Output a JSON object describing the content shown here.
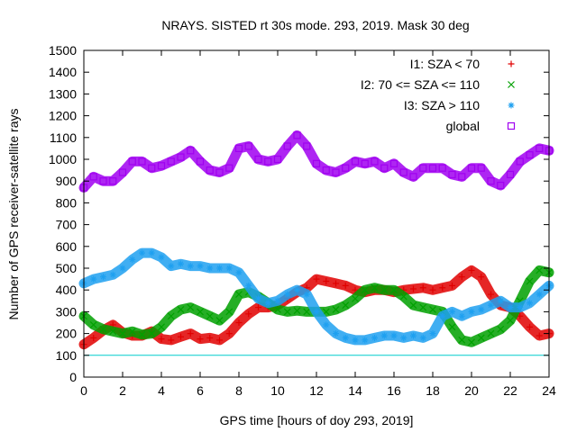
{
  "chart_data": {
    "type": "scatter",
    "title": "NRAYS. SISTED rt 30s mode. 293, 2019. Mask 30 deg",
    "xlabel": "GPS time [hours of doy 293, 2019]",
    "ylabel": "Number of GPS receiver-satellite rays",
    "xlim": [
      0,
      24
    ],
    "ylim": [
      0,
      1500
    ],
    "xticks": [
      0,
      2,
      4,
      6,
      8,
      10,
      12,
      14,
      16,
      18,
      20,
      22,
      24
    ],
    "yticks": [
      0,
      100,
      200,
      300,
      400,
      500,
      600,
      700,
      800,
      900,
      1000,
      1100,
      1200,
      1300,
      1400,
      1500
    ],
    "xtick_labels": [
      "0",
      "2",
      "4",
      "6",
      "8",
      "10",
      "12",
      "14",
      "16",
      "18",
      "20",
      "22",
      "24"
    ],
    "ytick_labels": [
      "0",
      "100",
      "200",
      "300",
      "400",
      "500",
      "600",
      "700",
      "800",
      "900",
      "1000",
      "1100",
      "1200",
      "1300",
      "1400",
      "1500"
    ],
    "legend_position": "top-right",
    "reference_line": {
      "y": 100,
      "color": "#00cccc"
    },
    "series": [
      {
        "name": "I1: SZA < 70",
        "color": "#e00000",
        "marker": "plus",
        "x": [
          0,
          0.5,
          1,
          1.5,
          2,
          2.5,
          3,
          3.5,
          4,
          4.5,
          5,
          5.5,
          6,
          6.5,
          7,
          7.5,
          8,
          8.5,
          9,
          9.5,
          10,
          10.5,
          11,
          11.5,
          12,
          12.5,
          13,
          13.5,
          14,
          14.5,
          15,
          15.5,
          16,
          16.5,
          17,
          17.5,
          18,
          18.5,
          19,
          19.5,
          20,
          20.5,
          21,
          21.5,
          22,
          22.5,
          23,
          23.5,
          24
        ],
        "values": [
          150,
          180,
          215,
          240,
          205,
          190,
          190,
          210,
          175,
          170,
          185,
          200,
          175,
          180,
          170,
          200,
          250,
          290,
          320,
          320,
          330,
          360,
          390,
          410,
          450,
          440,
          430,
          420,
          400,
          390,
          400,
          400,
          390,
          400,
          405,
          410,
          400,
          410,
          420,
          460,
          490,
          460,
          380,
          330,
          320,
          280,
          230,
          190,
          200
        ]
      },
      {
        "name": "I2: 70 <= SZA <= 110",
        "color": "#00a000",
        "marker": "cross",
        "x": [
          0,
          0.5,
          1,
          1.5,
          2,
          2.5,
          3,
          3.5,
          4,
          4.5,
          5,
          5.5,
          6,
          6.5,
          7,
          7.5,
          8,
          8.5,
          9,
          9.5,
          10,
          10.5,
          11,
          11.5,
          12,
          12.5,
          13,
          13.5,
          14,
          14.5,
          15,
          15.5,
          16,
          16.5,
          17,
          17.5,
          18,
          18.5,
          19,
          19.5,
          20,
          20.5,
          21,
          21.5,
          22,
          22.5,
          23,
          23.5,
          24
        ],
        "values": [
          280,
          240,
          220,
          210,
          200,
          210,
          195,
          200,
          230,
          280,
          310,
          320,
          300,
          280,
          260,
          300,
          380,
          390,
          370,
          340,
          310,
          300,
          305,
          300,
          300,
          300,
          310,
          330,
          360,
          400,
          410,
          400,
          400,
          370,
          330,
          320,
          310,
          300,
          230,
          170,
          160,
          180,
          200,
          220,
          260,
          350,
          440,
          490,
          480
        ]
      },
      {
        "name": "I3: SZA > 110",
        "color": "#1ea0f0",
        "marker": "star",
        "x": [
          0,
          0.5,
          1,
          1.5,
          2,
          2.5,
          3,
          3.5,
          4,
          4.5,
          5,
          5.5,
          6,
          6.5,
          7,
          7.5,
          8,
          8.5,
          9,
          9.5,
          10,
          10.5,
          11,
          11.5,
          12,
          12.5,
          13,
          13.5,
          14,
          14.5,
          15,
          15.5,
          16,
          16.5,
          17,
          17.5,
          18,
          18.5,
          19,
          19.5,
          20,
          20.5,
          21,
          21.5,
          22,
          22.5,
          23,
          23.5,
          24
        ],
        "values": [
          430,
          450,
          460,
          470,
          500,
          540,
          570,
          570,
          550,
          510,
          520,
          510,
          510,
          500,
          500,
          500,
          480,
          420,
          360,
          340,
          350,
          380,
          400,
          380,
          300,
          240,
          200,
          180,
          170,
          170,
          180,
          190,
          190,
          180,
          190,
          180,
          200,
          280,
          300,
          280,
          300,
          310,
          330,
          350,
          320,
          320,
          340,
          380,
          420
        ]
      },
      {
        "name": "global",
        "color": "#a000f0",
        "marker": "square",
        "x": [
          0,
          0.5,
          1,
          1.5,
          2,
          2.5,
          3,
          3.5,
          4,
          4.5,
          5,
          5.5,
          6,
          6.5,
          7,
          7.5,
          8,
          8.5,
          9,
          9.5,
          10,
          10.5,
          11,
          11.5,
          12,
          12.5,
          13,
          13.5,
          14,
          14.5,
          15,
          15.5,
          16,
          16.5,
          17,
          17.5,
          18,
          18.5,
          19,
          19.5,
          20,
          20.5,
          21,
          21.5,
          22,
          22.5,
          23,
          23.5,
          24
        ],
        "values": [
          870,
          920,
          900,
          900,
          940,
          990,
          990,
          960,
          970,
          990,
          1010,
          1040,
          990,
          950,
          940,
          960,
          1050,
          1060,
          1000,
          990,
          1000,
          1060,
          1110,
          1060,
          980,
          950,
          940,
          960,
          990,
          980,
          990,
          960,
          980,
          940,
          920,
          960,
          960,
          960,
          930,
          920,
          960,
          960,
          900,
          880,
          930,
          990,
          1020,
          1050,
          1040
        ]
      }
    ]
  }
}
